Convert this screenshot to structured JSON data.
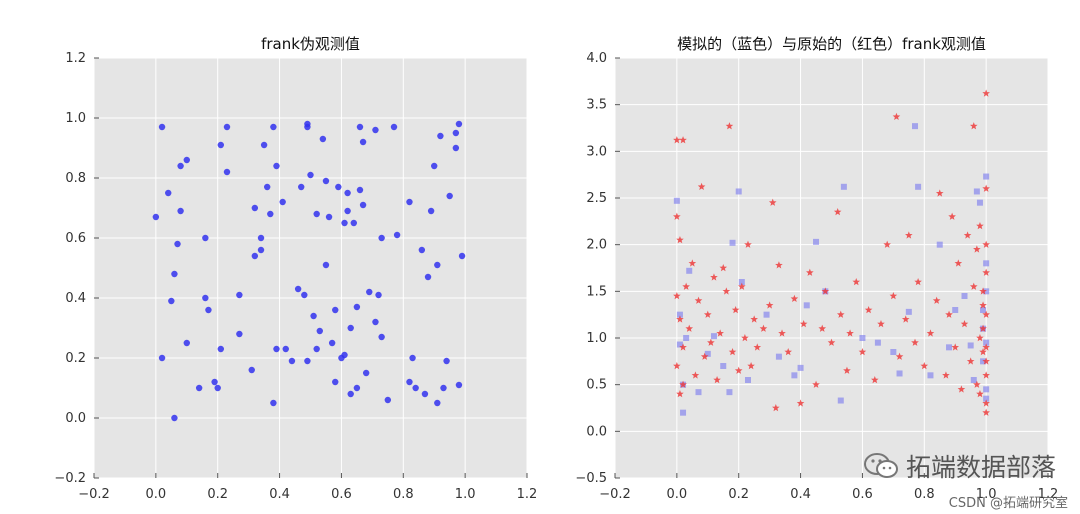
{
  "chart_data": [
    {
      "type": "scatter",
      "title": "frank伪观测值",
      "xlabel": "",
      "ylabel": "",
      "xlim": [
        -0.2,
        1.2
      ],
      "ylim": [
        -0.2,
        1.2
      ],
      "xticks": [
        "−0.2",
        "0.0",
        "0.2",
        "0.4",
        "0.6",
        "0.8",
        "1.0",
        "1.2"
      ],
      "yticks": [
        "−0.2",
        "0.0",
        "0.2",
        "0.4",
        "0.6",
        "0.8",
        "1.0",
        "1.2"
      ],
      "grid": true,
      "series": [
        {
          "color": "#3333ee",
          "marker": "circle",
          "points": [
            [
              0.0,
              0.67
            ],
            [
              0.02,
              0.97
            ],
            [
              0.04,
              0.75
            ],
            [
              0.06,
              0.0
            ],
            [
              0.05,
              0.39
            ],
            [
              0.06,
              0.48
            ],
            [
              0.07,
              0.58
            ],
            [
              0.08,
              0.69
            ],
            [
              0.08,
              0.84
            ],
            [
              0.1,
              0.86
            ],
            [
              0.1,
              0.25
            ],
            [
              0.02,
              0.2
            ],
            [
              0.14,
              0.1
            ],
            [
              0.16,
              0.6
            ],
            [
              0.16,
              0.4
            ],
            [
              0.17,
              0.36
            ],
            [
              0.19,
              0.12
            ],
            [
              0.2,
              0.1
            ],
            [
              0.21,
              0.91
            ],
            [
              0.21,
              0.23
            ],
            [
              0.23,
              0.97
            ],
            [
              0.23,
              0.82
            ],
            [
              0.27,
              0.28
            ],
            [
              0.27,
              0.41
            ],
            [
              0.31,
              0.16
            ],
            [
              0.32,
              0.7
            ],
            [
              0.32,
              0.54
            ],
            [
              0.34,
              0.6
            ],
            [
              0.34,
              0.56
            ],
            [
              0.35,
              0.91
            ],
            [
              0.36,
              0.77
            ],
            [
              0.37,
              0.68
            ],
            [
              0.38,
              0.05
            ],
            [
              0.38,
              0.97
            ],
            [
              0.39,
              0.84
            ],
            [
              0.39,
              0.23
            ],
            [
              0.41,
              0.72
            ],
            [
              0.42,
              0.23
            ],
            [
              0.44,
              0.19
            ],
            [
              0.46,
              0.43
            ],
            [
              0.47,
              0.77
            ],
            [
              0.48,
              0.41
            ],
            [
              0.49,
              0.19
            ],
            [
              0.49,
              0.98
            ],
            [
              0.49,
              0.97
            ],
            [
              0.5,
              0.81
            ],
            [
              0.51,
              0.34
            ],
            [
              0.52,
              0.68
            ],
            [
              0.52,
              0.23
            ],
            [
              0.53,
              0.29
            ],
            [
              0.54,
              0.93
            ],
            [
              0.55,
              0.79
            ],
            [
              0.55,
              0.51
            ],
            [
              0.56,
              0.67
            ],
            [
              0.57,
              0.25
            ],
            [
              0.58,
              0.36
            ],
            [
              0.58,
              0.12
            ],
            [
              0.59,
              0.77
            ],
            [
              0.6,
              0.2
            ],
            [
              0.61,
              0.65
            ],
            [
              0.61,
              0.21
            ],
            [
              0.62,
              0.75
            ],
            [
              0.62,
              0.69
            ],
            [
              0.63,
              0.08
            ],
            [
              0.63,
              0.3
            ],
            [
              0.64,
              0.65
            ],
            [
              0.65,
              0.37
            ],
            [
              0.65,
              0.1
            ],
            [
              0.66,
              0.76
            ],
            [
              0.66,
              0.97
            ],
            [
              0.67,
              0.92
            ],
            [
              0.67,
              0.71
            ],
            [
              0.68,
              0.15
            ],
            [
              0.69,
              0.42
            ],
            [
              0.71,
              0.96
            ],
            [
              0.71,
              0.32
            ],
            [
              0.72,
              0.41
            ],
            [
              0.73,
              0.27
            ],
            [
              0.73,
              0.6
            ],
            [
              0.75,
              0.06
            ],
            [
              0.77,
              0.97
            ],
            [
              0.78,
              0.61
            ],
            [
              0.82,
              0.72
            ],
            [
              0.82,
              0.12
            ],
            [
              0.83,
              0.2
            ],
            [
              0.84,
              0.1
            ],
            [
              0.86,
              0.56
            ],
            [
              0.87,
              0.08
            ],
            [
              0.88,
              0.47
            ],
            [
              0.89,
              0.69
            ],
            [
              0.9,
              0.84
            ],
            [
              0.91,
              0.51
            ],
            [
              0.91,
              0.05
            ],
            [
              0.92,
              0.94
            ],
            [
              0.93,
              0.1
            ],
            [
              0.94,
              0.19
            ],
            [
              0.95,
              0.74
            ],
            [
              0.97,
              0.9
            ],
            [
              0.97,
              0.95
            ],
            [
              0.98,
              0.98
            ],
            [
              0.98,
              0.11
            ],
            [
              0.99,
              0.54
            ]
          ]
        }
      ]
    },
    {
      "type": "scatter",
      "title": "模拟的（蓝色）与原始的（红色）frank观测值",
      "xlabel": "",
      "ylabel": "",
      "xlim": [
        -0.2,
        1.2
      ],
      "ylim": [
        -0.5,
        4.0
      ],
      "xticks": [
        "−0.2",
        "0.0",
        "0.2",
        "0.4",
        "0.6",
        "0.8",
        "1.0",
        "1.2"
      ],
      "yticks": [
        "−0.5",
        "0.0",
        "0.5",
        "1.0",
        "1.5",
        "2.0",
        "2.5",
        "3.0",
        "3.5",
        "4.0"
      ],
      "grid": true,
      "series": [
        {
          "color": "#7777ee",
          "marker": "square",
          "points": [
            [
              0.0,
              2.47
            ],
            [
              0.01,
              1.25
            ],
            [
              0.01,
              0.93
            ],
            [
              0.02,
              0.5
            ],
            [
              0.02,
              0.2
            ],
            [
              0.03,
              1.0
            ],
            [
              0.04,
              1.72
            ],
            [
              0.07,
              0.42
            ],
            [
              0.1,
              0.83
            ],
            [
              0.12,
              1.02
            ],
            [
              0.15,
              0.7
            ],
            [
              0.17,
              0.42
            ],
            [
              0.18,
              2.02
            ],
            [
              0.2,
              2.57
            ],
            [
              0.21,
              1.6
            ],
            [
              0.23,
              0.55
            ],
            [
              0.29,
              1.25
            ],
            [
              0.33,
              0.8
            ],
            [
              0.38,
              0.6
            ],
            [
              0.4,
              0.68
            ],
            [
              0.42,
              1.35
            ],
            [
              0.45,
              2.03
            ],
            [
              0.48,
              1.5
            ],
            [
              0.53,
              0.33
            ],
            [
              0.54,
              2.62
            ],
            [
              0.6,
              1.0
            ],
            [
              0.65,
              0.95
            ],
            [
              0.7,
              0.85
            ],
            [
              0.72,
              0.62
            ],
            [
              0.75,
              1.28
            ],
            [
              0.77,
              3.27
            ],
            [
              0.78,
              2.62
            ],
            [
              0.82,
              0.6
            ],
            [
              0.85,
              2.0
            ],
            [
              0.88,
              0.9
            ],
            [
              0.9,
              1.3
            ],
            [
              0.93,
              1.45
            ],
            [
              0.95,
              0.92
            ],
            [
              0.96,
              0.55
            ],
            [
              0.97,
              2.57
            ],
            [
              0.98,
              2.45
            ],
            [
              0.99,
              1.1
            ],
            [
              1.0,
              2.73
            ],
            [
              1.0,
              1.5
            ],
            [
              1.0,
              0.95
            ],
            [
              1.0,
              0.35
            ],
            [
              0.99,
              0.75
            ],
            [
              1.0,
              1.8
            ],
            [
              1.0,
              0.45
            ],
            [
              0.99,
              1.3
            ]
          ]
        },
        {
          "color": "#ee3333",
          "marker": "star",
          "points": [
            [
              0.0,
              3.12
            ],
            [
              0.02,
              3.12
            ],
            [
              0.0,
              2.3
            ],
            [
              0.01,
              2.05
            ],
            [
              0.0,
              1.45
            ],
            [
              0.01,
              1.2
            ],
            [
              0.02,
              0.9
            ],
            [
              0.0,
              0.7
            ],
            [
              0.02,
              0.5
            ],
            [
              0.01,
              0.4
            ],
            [
              0.03,
              1.55
            ],
            [
              0.04,
              1.1
            ],
            [
              0.05,
              1.8
            ],
            [
              0.06,
              0.6
            ],
            [
              0.07,
              1.4
            ],
            [
              0.08,
              2.62
            ],
            [
              0.09,
              0.8
            ],
            [
              0.1,
              1.25
            ],
            [
              0.11,
              0.95
            ],
            [
              0.12,
              1.65
            ],
            [
              0.13,
              0.55
            ],
            [
              0.14,
              1.05
            ],
            [
              0.15,
              1.75
            ],
            [
              0.16,
              1.5
            ],
            [
              0.17,
              3.27
            ],
            [
              0.18,
              0.85
            ],
            [
              0.19,
              1.3
            ],
            [
              0.2,
              0.65
            ],
            [
              0.21,
              1.55
            ],
            [
              0.22,
              1.0
            ],
            [
              0.23,
              2.0
            ],
            [
              0.24,
              0.7
            ],
            [
              0.25,
              1.2
            ],
            [
              0.26,
              0.9
            ],
            [
              0.28,
              1.1
            ],
            [
              0.3,
              1.35
            ],
            [
              0.31,
              2.45
            ],
            [
              0.32,
              0.25
            ],
            [
              0.33,
              1.78
            ],
            [
              0.34,
              1.05
            ],
            [
              0.36,
              0.85
            ],
            [
              0.38,
              1.42
            ],
            [
              0.4,
              0.3
            ],
            [
              0.41,
              1.15
            ],
            [
              0.43,
              1.7
            ],
            [
              0.45,
              0.5
            ],
            [
              0.47,
              1.1
            ],
            [
              0.48,
              1.5
            ],
            [
              0.5,
              0.95
            ],
            [
              0.52,
              2.35
            ],
            [
              0.53,
              1.25
            ],
            [
              0.55,
              0.65
            ],
            [
              0.56,
              1.05
            ],
            [
              0.58,
              1.6
            ],
            [
              0.6,
              0.85
            ],
            [
              0.62,
              1.3
            ],
            [
              0.64,
              0.55
            ],
            [
              0.66,
              1.15
            ],
            [
              0.68,
              2.0
            ],
            [
              0.7,
              1.45
            ],
            [
              0.71,
              3.37
            ],
            [
              0.72,
              0.8
            ],
            [
              0.74,
              1.2
            ],
            [
              0.75,
              2.1
            ],
            [
              0.77,
              0.95
            ],
            [
              0.78,
              1.6
            ],
            [
              0.8,
              0.7
            ],
            [
              0.82,
              1.05
            ],
            [
              0.84,
              1.4
            ],
            [
              0.85,
              2.55
            ],
            [
              0.87,
              0.6
            ],
            [
              0.88,
              1.25
            ],
            [
              0.89,
              2.3
            ],
            [
              0.9,
              0.9
            ],
            [
              0.91,
              1.8
            ],
            [
              0.92,
              0.45
            ],
            [
              0.93,
              1.15
            ],
            [
              0.94,
              2.1
            ],
            [
              0.95,
              0.75
            ],
            [
              0.96,
              1.55
            ],
            [
              0.96,
              3.27
            ],
            [
              0.97,
              0.5
            ],
            [
              0.97,
              1.95
            ],
            [
              0.98,
              1.0
            ],
            [
              0.98,
              2.2
            ],
            [
              0.99,
              0.85
            ],
            [
              0.99,
              1.35
            ],
            [
              1.0,
              3.62
            ],
            [
              1.0,
              2.6
            ],
            [
              1.0,
              1.7
            ],
            [
              1.0,
              1.25
            ],
            [
              1.0,
              0.9
            ],
            [
              1.0,
              0.6
            ],
            [
              1.0,
              0.3
            ],
            [
              1.0,
              2.0
            ],
            [
              0.99,
              1.1
            ],
            [
              0.98,
              0.4
            ],
            [
              1.0,
              0.2
            ],
            [
              0.99,
              1.5
            ],
            [
              1.0,
              0.75
            ]
          ]
        }
      ]
    }
  ],
  "watermark": {
    "text": "拓端数据部落",
    "icon": "wechat-icon",
    "credit": "CSDN @拓端研究室"
  }
}
